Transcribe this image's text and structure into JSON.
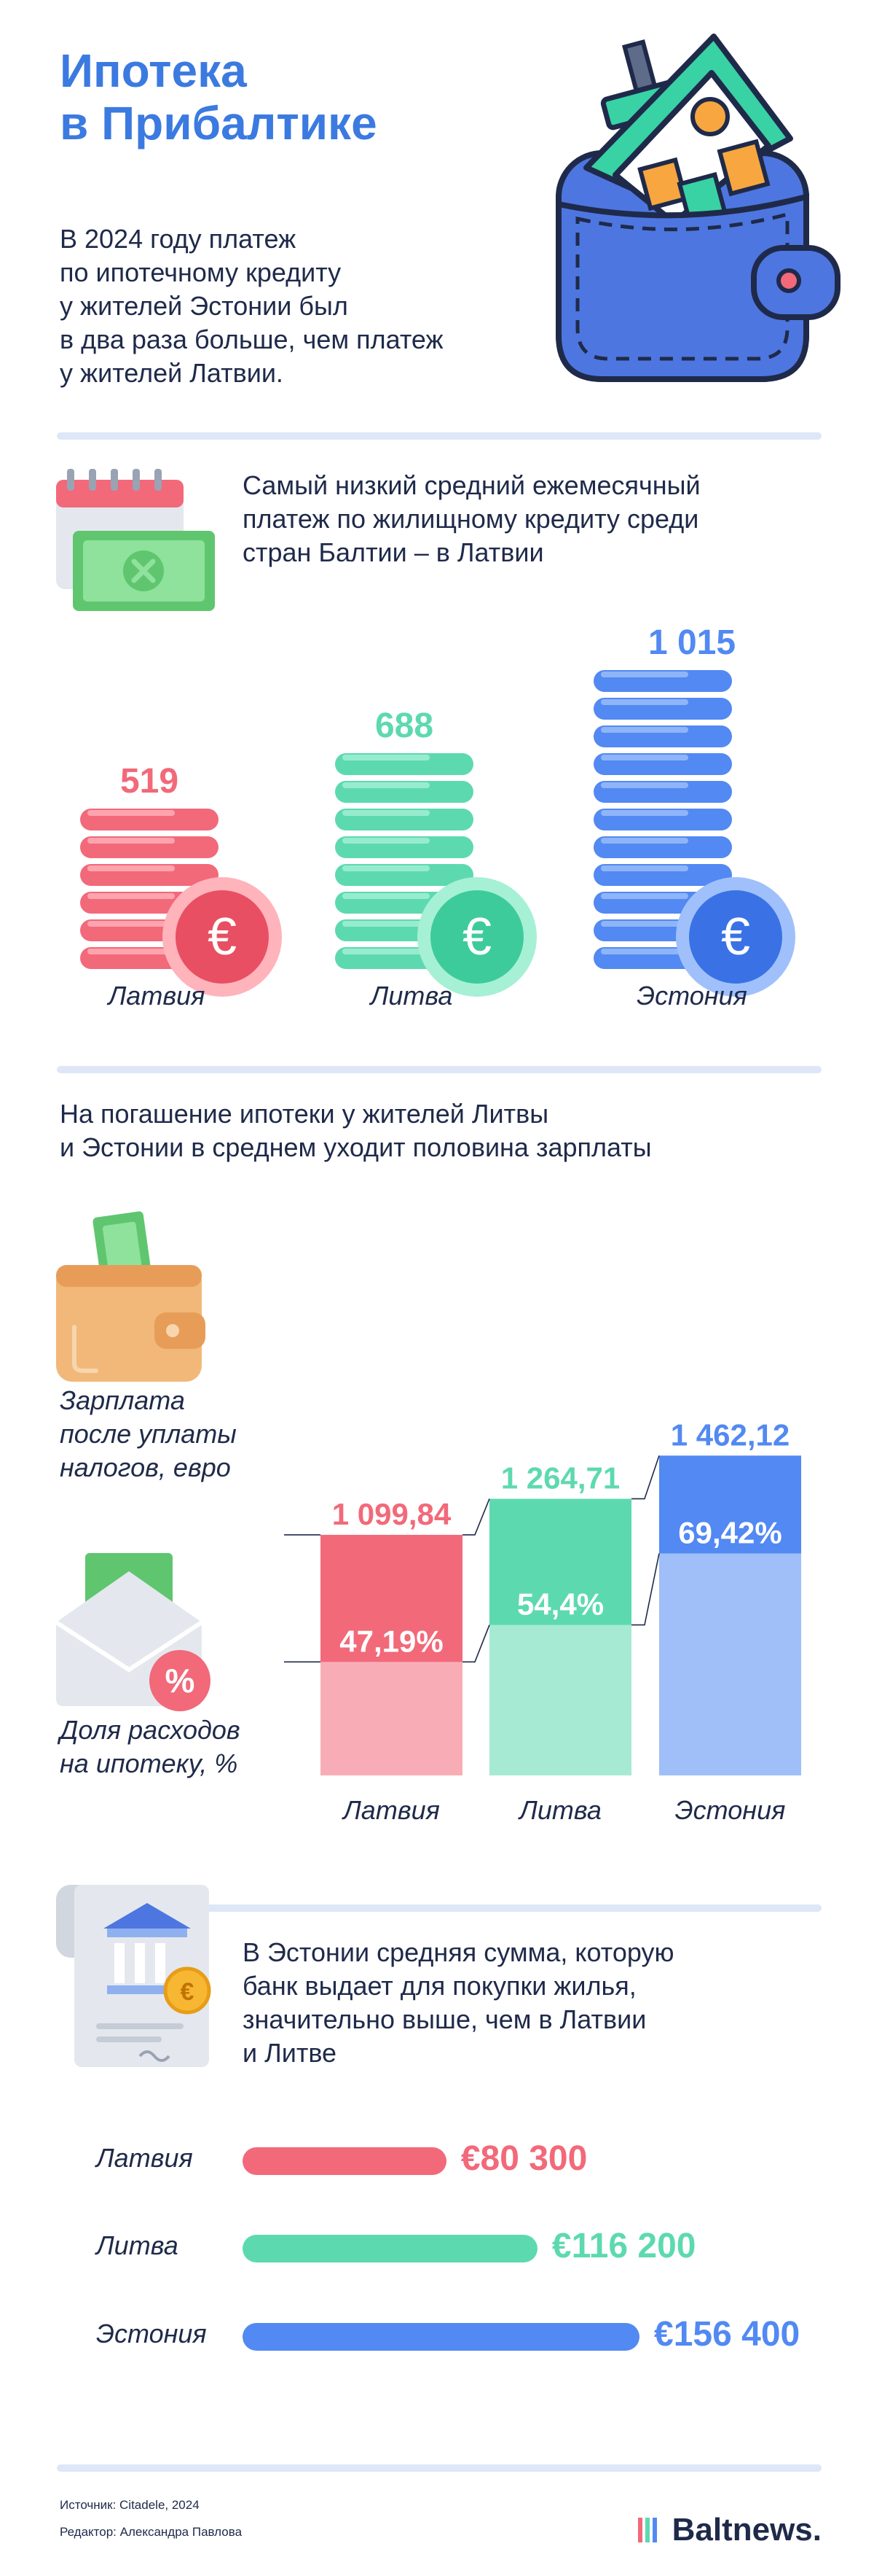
{
  "header": {
    "title_line1": "Ипотека",
    "title_line2": "в Прибалтике",
    "intro_lines": [
      "В 2024 году платеж",
      "по ипотечному кредиту",
      "у жителей Эстонии был",
      "в два раза больше, чем платеж",
      "у жителей Латвии."
    ]
  },
  "section1": {
    "heading_lines": [
      "Самый низкий средний ежемесячный",
      "платеж по жилищному кредиту среди",
      "стран Балтии – в Латвии"
    ]
  },
  "section2": {
    "heading_lines": [
      "На погашение ипотеки у жителей Литвы",
      "и Эстонии в среднем уходит половина зарплаты"
    ],
    "legend_salary_lines": [
      "Зарплата",
      "после уплаты",
      "налогов, евро"
    ],
    "legend_share_lines": [
      "Доля расходов",
      "на ипотеку, %"
    ]
  },
  "section3": {
    "heading_lines": [
      "В Эстонии средняя сумма, которую",
      "банк выдает для покупки жилья,",
      "значительно выше, чем в Латвии",
      "и Литве"
    ]
  },
  "footer": {
    "source": "Источник: Citadele, 2024",
    "editor": "Редактор: Александра Павлова",
    "logo": "Baltnews."
  },
  "colors": {
    "latvia": "#f2697a",
    "lithuania": "#5dd9b0",
    "estonia": "#5289f2",
    "title": "#3b7ae0"
  },
  "icons": [
    "house-in-wallet-icon",
    "calendar-money-icon",
    "euro-coin-icon",
    "wallet-money-icon",
    "envelope-percent-icon",
    "bank-document-icon"
  ],
  "chart_data": [
    {
      "type": "bar",
      "categories": [
        "Латвия",
        "Литва",
        "Эстония"
      ],
      "values": [
        519,
        688,
        1015
      ],
      "value_labels": [
        "519",
        "688",
        "1 015"
      ]
    },
    {
      "type": "bar",
      "categories": [
        "Латвия",
        "Литва",
        "Эстония"
      ],
      "series": [
        {
          "values": [
            1099.84,
            1264.71,
            1462.12
          ],
          "labels": [
            "1 099,84",
            "1 264,71",
            "1 462,12"
          ]
        },
        {
          "values": [
            47.19,
            54.4,
            69.42
          ],
          "labels": [
            "47,19%",
            "54,4%",
            "69,42%"
          ]
        }
      ]
    },
    {
      "type": "bar",
      "categories": [
        "Латвия",
        "Литва",
        "Эстония"
      ],
      "values": [
        80300,
        116200,
        156400
      ],
      "value_labels": [
        "€80 300",
        "€116 200",
        "€156 400"
      ]
    }
  ]
}
